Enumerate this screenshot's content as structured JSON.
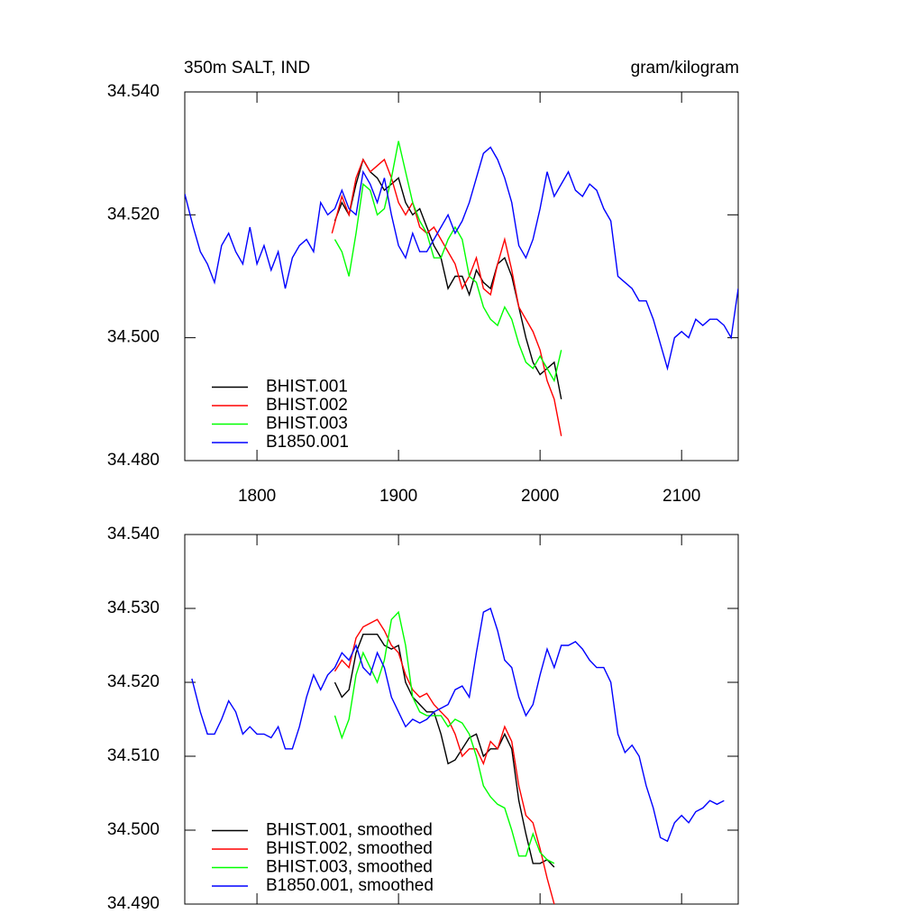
{
  "chart_data": [
    {
      "type": "line",
      "title": "350m SALT, IND",
      "subtitle": "gram/kilogram",
      "xlim": [
        1749,
        2140
      ],
      "xticks": [
        1800,
        1900,
        2000,
        2100
      ],
      "ylim": [
        34.48,
        34.54
      ],
      "yticks": [
        {
          "value": 34.48,
          "label": "34.480"
        },
        {
          "value": 34.5,
          "label": "34.500"
        },
        {
          "value": 34.52,
          "label": "34.520"
        },
        {
          "value": 34.54,
          "label": "34.540"
        }
      ],
      "legend": "lower left",
      "series": [
        {
          "name": "BHIST.001",
          "color": "#000000",
          "x": [
            1855,
            1860,
            1865,
            1870,
            1875,
            1880,
            1885,
            1890,
            1895,
            1900,
            1905,
            1910,
            1915,
            1920,
            1925,
            1930,
            1935,
            1940,
            1945,
            1950,
            1955,
            1960,
            1965,
            1970,
            1975,
            1980,
            1985,
            1990,
            1995,
            2000,
            2005,
            2010,
            2015
          ],
          "values": [
            34.519,
            34.522,
            34.52,
            34.525,
            34.529,
            34.527,
            34.526,
            34.524,
            34.525,
            34.526,
            34.522,
            34.52,
            34.521,
            34.518,
            34.515,
            34.513,
            34.508,
            34.51,
            34.51,
            34.507,
            34.511,
            34.509,
            34.508,
            34.512,
            34.513,
            34.51,
            34.505,
            34.5,
            34.496,
            34.494,
            34.495,
            34.496,
            34.49
          ]
        },
        {
          "name": "BHIST.002",
          "color": "#ff0000",
          "x": [
            1853,
            1860,
            1865,
            1870,
            1875,
            1880,
            1885,
            1890,
            1895,
            1900,
            1905,
            1910,
            1915,
            1920,
            1925,
            1930,
            1935,
            1940,
            1945,
            1950,
            1955,
            1960,
            1965,
            1970,
            1975,
            1980,
            1985,
            1990,
            1995,
            2000,
            2005,
            2010,
            2015
          ],
          "values": [
            34.517,
            34.523,
            34.52,
            34.526,
            34.529,
            34.527,
            34.528,
            34.529,
            34.526,
            34.522,
            34.52,
            34.522,
            34.518,
            34.517,
            34.518,
            34.516,
            34.514,
            34.512,
            34.508,
            34.51,
            34.513,
            34.508,
            34.507,
            34.512,
            34.516,
            34.511,
            34.505,
            34.503,
            34.501,
            34.498,
            34.493,
            34.49,
            34.484
          ]
        },
        {
          "name": "BHIST.003",
          "color": "#00ff00",
          "x": [
            1855,
            1860,
            1865,
            1870,
            1875,
            1880,
            1885,
            1890,
            1895,
            1900,
            1905,
            1910,
            1915,
            1920,
            1925,
            1930,
            1935,
            1940,
            1945,
            1950,
            1955,
            1960,
            1965,
            1970,
            1975,
            1980,
            1985,
            1990,
            1995,
            2000,
            2005,
            2010,
            2015
          ],
          "values": [
            34.516,
            34.514,
            34.51,
            34.517,
            34.525,
            34.524,
            34.52,
            34.521,
            34.526,
            34.532,
            34.527,
            34.522,
            34.519,
            34.517,
            34.513,
            34.513,
            34.516,
            34.518,
            34.516,
            34.51,
            34.509,
            34.505,
            34.503,
            34.502,
            34.505,
            34.503,
            34.499,
            34.496,
            34.495,
            34.497,
            34.495,
            34.493,
            34.498
          ]
        },
        {
          "name": "B1850.001",
          "color": "#0000ff",
          "x": [
            1749,
            1755,
            1760,
            1765,
            1770,
            1775,
            1780,
            1785,
            1790,
            1795,
            1800,
            1805,
            1810,
            1815,
            1820,
            1825,
            1830,
            1835,
            1840,
            1845,
            1850,
            1855,
            1860,
            1865,
            1870,
            1875,
            1880,
            1885,
            1890,
            1895,
            1900,
            1905,
            1910,
            1915,
            1920,
            1925,
            1930,
            1935,
            1940,
            1945,
            1950,
            1955,
            1960,
            1965,
            1970,
            1975,
            1980,
            1985,
            1990,
            1995,
            2000,
            2005,
            2010,
            2015,
            2020,
            2025,
            2030,
            2035,
            2040,
            2045,
            2050,
            2055,
            2060,
            2065,
            2070,
            2075,
            2080,
            2085,
            2090,
            2095,
            2100,
            2105,
            2110,
            2115,
            2120,
            2125,
            2130,
            2135,
            2140
          ],
          "values": [
            34.5234,
            34.518,
            34.514,
            34.512,
            34.509,
            34.515,
            34.517,
            34.514,
            34.512,
            34.518,
            34.512,
            34.515,
            34.511,
            34.514,
            34.508,
            34.513,
            34.515,
            34.516,
            34.514,
            34.522,
            34.52,
            34.521,
            34.524,
            34.521,
            34.52,
            34.527,
            34.525,
            34.522,
            34.526,
            34.52,
            34.515,
            34.513,
            34.517,
            34.514,
            34.514,
            34.516,
            34.518,
            34.52,
            34.517,
            34.519,
            34.522,
            34.526,
            34.53,
            34.531,
            34.529,
            34.526,
            34.522,
            34.515,
            34.513,
            34.516,
            34.521,
            34.527,
            34.523,
            34.525,
            34.527,
            34.524,
            34.523,
            34.525,
            34.524,
            34.521,
            34.519,
            34.51,
            34.509,
            34.508,
            34.506,
            34.506,
            34.503,
            34.499,
            34.495,
            34.5,
            34.501,
            34.5,
            34.503,
            34.502,
            34.503,
            34.503,
            34.502,
            34.5,
            34.508
          ]
        }
      ]
    },
    {
      "type": "line",
      "xlim": [
        1749,
        2140
      ],
      "xticks": [
        1800,
        1900,
        2000,
        2100
      ],
      "ylim": [
        34.49,
        34.54
      ],
      "yticks": [
        {
          "value": 34.49,
          "label": "34.490"
        },
        {
          "value": 34.5,
          "label": "34.500"
        },
        {
          "value": 34.51,
          "label": "34.510"
        },
        {
          "value": 34.52,
          "label": "34.520"
        },
        {
          "value": 34.53,
          "label": "34.530"
        },
        {
          "value": 34.54,
          "label": "34.540"
        }
      ],
      "legend": "lower left",
      "series": [
        {
          "name": "BHIST.001, smoothed",
          "color": "#000000",
          "x": [
            1855,
            1860,
            1865,
            1870,
            1875,
            1880,
            1885,
            1890,
            1895,
            1900,
            1905,
            1910,
            1915,
            1920,
            1925,
            1930,
            1935,
            1940,
            1945,
            1950,
            1955,
            1960,
            1965,
            1970,
            1975,
            1980,
            1985,
            1990,
            1995,
            2000,
            2005,
            2010
          ],
          "values": [
            34.52,
            34.518,
            34.519,
            34.524,
            34.5265,
            34.5265,
            34.5265,
            34.525,
            34.5245,
            34.525,
            34.52,
            34.518,
            34.517,
            34.516,
            34.516,
            34.513,
            34.509,
            34.5095,
            34.511,
            34.5125,
            34.513,
            34.51,
            34.511,
            34.511,
            34.513,
            34.511,
            34.504,
            34.4995,
            34.4955,
            34.4955,
            34.496,
            34.495
          ]
        },
        {
          "name": "BHIST.002, smoothed",
          "color": "#ff0000",
          "x": [
            1855,
            1860,
            1865,
            1870,
            1875,
            1880,
            1885,
            1890,
            1895,
            1900,
            1905,
            1910,
            1915,
            1920,
            1925,
            1930,
            1935,
            1940,
            1945,
            1950,
            1955,
            1960,
            1965,
            1970,
            1975,
            1980,
            1985,
            1990,
            1995,
            2000,
            2005,
            2010
          ],
          "values": [
            34.5215,
            34.523,
            34.522,
            34.526,
            34.5275,
            34.528,
            34.5285,
            34.527,
            34.525,
            34.524,
            34.521,
            34.519,
            34.518,
            34.5185,
            34.517,
            34.516,
            34.515,
            34.513,
            34.51,
            34.511,
            34.511,
            34.509,
            34.512,
            34.511,
            34.514,
            34.512,
            34.506,
            34.502,
            34.501,
            34.4975,
            34.4935,
            34.49
          ]
        },
        {
          "name": "BHIST.003, smoothed",
          "color": "#00ff00",
          "x": [
            1855,
            1860,
            1865,
            1870,
            1875,
            1880,
            1885,
            1890,
            1895,
            1900,
            1905,
            1910,
            1915,
            1920,
            1925,
            1930,
            1935,
            1940,
            1945,
            1950,
            1955,
            1960,
            1965,
            1970,
            1975,
            1980,
            1985,
            1990,
            1995,
            2000,
            2005,
            2010
          ],
          "values": [
            34.5155,
            34.5125,
            34.515,
            34.521,
            34.524,
            34.522,
            34.52,
            34.523,
            34.5285,
            34.5295,
            34.525,
            34.518,
            34.516,
            34.5155,
            34.5155,
            34.5155,
            34.514,
            34.515,
            34.5145,
            34.513,
            34.51,
            34.506,
            34.5045,
            34.5035,
            34.503,
            34.5,
            34.4965,
            34.4965,
            34.4995,
            34.497,
            34.496,
            34.4955
          ]
        },
        {
          "name": "B1850.001, smoothed",
          "color": "#0000ff",
          "x": [
            1754,
            1760,
            1765,
            1770,
            1775,
            1780,
            1785,
            1790,
            1795,
            1800,
            1805,
            1810,
            1815,
            1820,
            1825,
            1830,
            1835,
            1840,
            1845,
            1850,
            1855,
            1860,
            1865,
            1870,
            1875,
            1880,
            1885,
            1890,
            1895,
            1900,
            1905,
            1910,
            1915,
            1920,
            1925,
            1930,
            1935,
            1940,
            1945,
            1950,
            1955,
            1960,
            1965,
            1970,
            1975,
            1980,
            1985,
            1990,
            1995,
            2000,
            2005,
            2010,
            2015,
            2020,
            2025,
            2030,
            2035,
            2040,
            2045,
            2050,
            2055,
            2060,
            2065,
            2070,
            2075,
            2080,
            2085,
            2090,
            2095,
            2100,
            2105,
            2110,
            2115,
            2120,
            2125,
            2130
          ],
          "values": [
            34.5205,
            34.516,
            34.513,
            34.513,
            34.515,
            34.5175,
            34.516,
            34.513,
            34.514,
            34.513,
            34.513,
            34.5125,
            34.514,
            34.511,
            34.511,
            34.514,
            34.518,
            34.521,
            34.519,
            34.521,
            34.522,
            34.524,
            34.523,
            34.525,
            34.522,
            34.521,
            34.524,
            34.522,
            34.518,
            34.516,
            34.514,
            34.515,
            34.5145,
            34.515,
            34.516,
            34.5165,
            34.517,
            34.519,
            34.5195,
            34.518,
            34.524,
            34.5295,
            34.53,
            34.527,
            34.523,
            34.522,
            34.518,
            34.5155,
            34.517,
            34.521,
            34.5245,
            34.522,
            34.525,
            34.525,
            34.5255,
            34.5245,
            34.523,
            34.522,
            34.522,
            34.52,
            34.513,
            34.5105,
            34.5115,
            34.51,
            34.506,
            34.503,
            34.499,
            34.4985,
            34.501,
            34.502,
            34.501,
            34.5025,
            34.503,
            34.504,
            34.5035,
            34.504
          ]
        }
      ]
    }
  ]
}
